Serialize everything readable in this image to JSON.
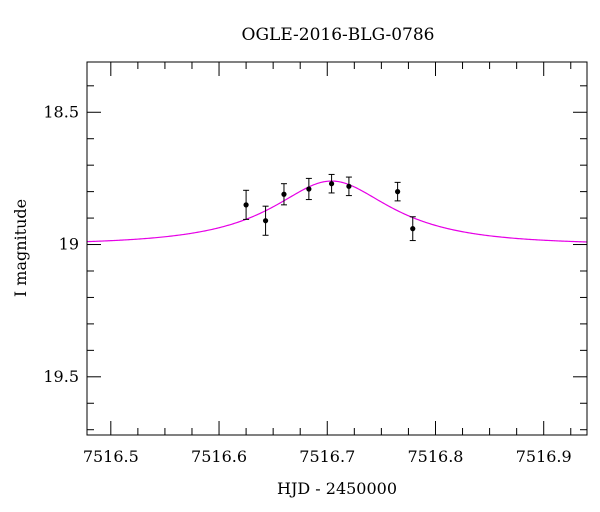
{
  "chart_data": {
    "type": "scatter",
    "title": "OGLE-2016-BLG-0786",
    "xlabel": "HJD - 2450000",
    "ylabel": "I magnitude",
    "xlim": [
      7516.478,
      7516.94
    ],
    "ylim": [
      18.31,
      19.72
    ],
    "y_inverted": true,
    "x_ticks": [
      7516.5,
      7516.6,
      7516.7,
      7516.8,
      7516.9
    ],
    "x_tick_labels": [
      "7516.5",
      "7516.6",
      "7516.7",
      "7516.8",
      "7516.9"
    ],
    "x_minor_step": 0.025,
    "y_ticks": [
      18.5,
      19,
      19.5
    ],
    "y_tick_labels": [
      "18.5",
      "19",
      "19.5"
    ],
    "y_minor_step": 0.1,
    "grid": false,
    "legend": "none",
    "model_color": "#e600e6",
    "point_color": "#000000",
    "model": {
      "t0": 7516.704,
      "baseline_mag": 19.0,
      "peak_mag": 18.76,
      "u0": 0.55,
      "tE": 0.107
    },
    "points": [
      {
        "x": 7516.625,
        "y": 18.85,
        "err": 0.055
      },
      {
        "x": 7516.643,
        "y": 18.91,
        "err": 0.055
      },
      {
        "x": 7516.66,
        "y": 18.81,
        "err": 0.04
      },
      {
        "x": 7516.683,
        "y": 18.79,
        "err": 0.04
      },
      {
        "x": 7516.704,
        "y": 18.77,
        "err": 0.035
      },
      {
        "x": 7516.72,
        "y": 18.78,
        "err": 0.035
      },
      {
        "x": 7516.765,
        "y": 18.8,
        "err": 0.035
      },
      {
        "x": 7516.779,
        "y": 18.94,
        "err": 0.045
      }
    ]
  }
}
